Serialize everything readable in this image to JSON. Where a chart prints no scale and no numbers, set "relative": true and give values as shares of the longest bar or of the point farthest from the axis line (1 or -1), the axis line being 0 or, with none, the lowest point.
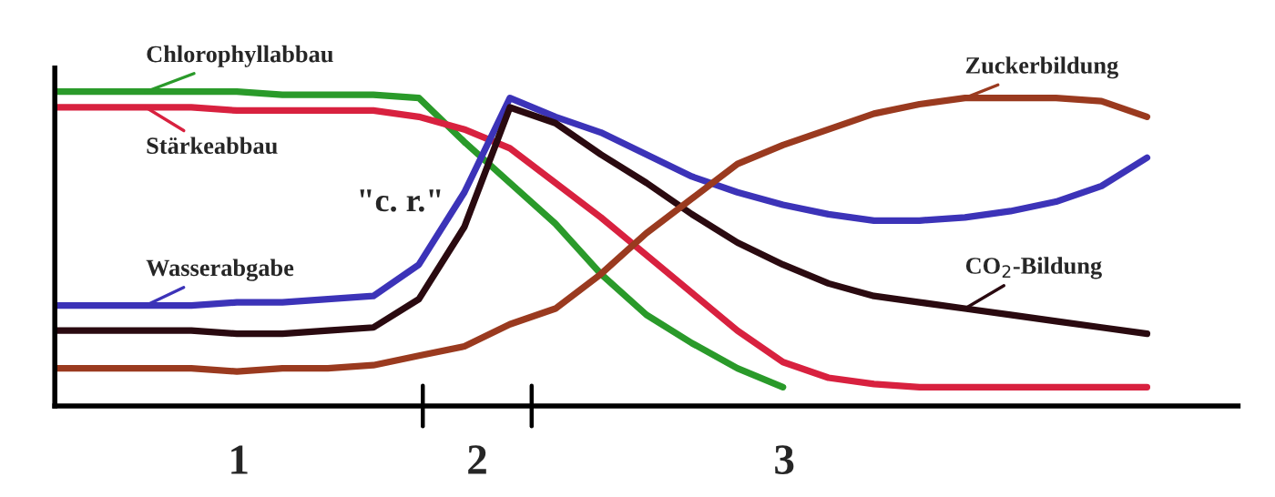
{
  "chart_data": {
    "type": "line",
    "relative": true,
    "categories": [
      null,
      null,
      null,
      null,
      null,
      null,
      null,
      null,
      null,
      null,
      null,
      null,
      null,
      null,
      null,
      null,
      null,
      null,
      null,
      null,
      null,
      null,
      null,
      null,
      null,
      null
    ],
    "grid": false,
    "marker": "none",
    "line_style": "solid",
    "series": [
      {
        "name": "Chlorophyllabbau",
        "color": "#2a9a2a",
        "values": [
          1,
          1,
          1,
          1,
          1,
          0.99,
          0.99,
          0.99,
          0.98,
          0.84,
          0.71,
          0.58,
          0.42,
          0.29,
          0.2,
          0.12,
          0.06,
          null,
          null,
          null,
          null,
          null,
          null,
          null,
          null,
          null
        ]
      },
      {
        "name": "Stärkeabbau",
        "color": "#d8213f",
        "values": [
          0.95,
          0.95,
          0.95,
          0.95,
          0.94,
          0.94,
          0.94,
          0.94,
          0.92,
          0.88,
          0.82,
          0.71,
          0.6,
          0.48,
          0.36,
          0.24,
          0.14,
          0.09,
          0.07,
          0.06,
          0.06,
          0.06,
          0.06,
          0.06,
          0.06,
          null
        ]
      },
      {
        "name": "Wasserabgabe",
        "color": "#3c33b8",
        "values": [
          0.32,
          0.32,
          0.32,
          0.32,
          0.33,
          0.33,
          0.34,
          0.35,
          0.45,
          0.68,
          0.98,
          0.92,
          0.87,
          0.8,
          0.73,
          0.68,
          0.64,
          0.61,
          0.59,
          0.59,
          0.6,
          0.62,
          0.65,
          0.7,
          0.79,
          null
        ]
      },
      {
        "name": "CO$_{2}$-Bildung",
        "color": "#2a0a10",
        "values": [
          0.24,
          0.24,
          0.24,
          0.24,
          0.23,
          0.23,
          0.24,
          0.25,
          0.34,
          0.57,
          0.95,
          0.9,
          0.8,
          0.71,
          0.61,
          0.52,
          0.45,
          0.39,
          0.35,
          0.33,
          0.31,
          0.29,
          0.27,
          0.25,
          0.23,
          null
        ]
      },
      {
        "name": "Zuckerbildung",
        "color": "#9a3a1f",
        "values": [
          0.12,
          0.12,
          0.12,
          0.12,
          0.11,
          0.12,
          0.12,
          0.13,
          0.16,
          0.19,
          0.26,
          0.31,
          0.42,
          0.55,
          0.66,
          0.77,
          0.83,
          0.88,
          0.93,
          0.96,
          0.98,
          0.98,
          0.98,
          0.97,
          0.92,
          null
        ]
      }
    ],
    "annotations": [
      "\"c. r.\"",
      "1",
      "2",
      "3"
    ]
  }
}
